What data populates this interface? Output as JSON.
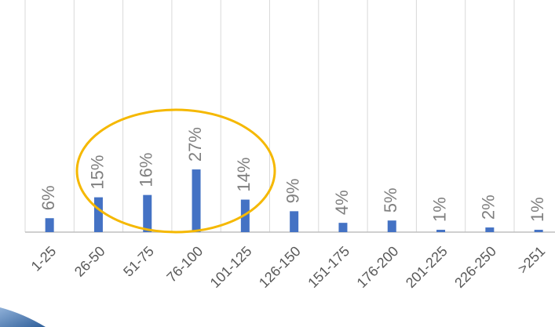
{
  "chart_data": {
    "type": "bar",
    "categories": [
      "1-25",
      "26-50",
      "51-75",
      "76-100",
      "101-125",
      "126-150",
      "151-175",
      "176-200",
      "201-225",
      "226-250",
      ">251"
    ],
    "values": [
      6,
      15,
      16,
      27,
      14,
      9,
      4,
      5,
      1,
      2,
      1
    ],
    "value_labels": [
      "6%",
      "15%",
      "16%",
      "27%",
      "14%",
      "9%",
      "4%",
      "5%",
      "1%",
      "2%",
      "1%"
    ],
    "color": "#4472c4",
    "ylim": [
      0,
      100
    ],
    "grid": true
  }
}
